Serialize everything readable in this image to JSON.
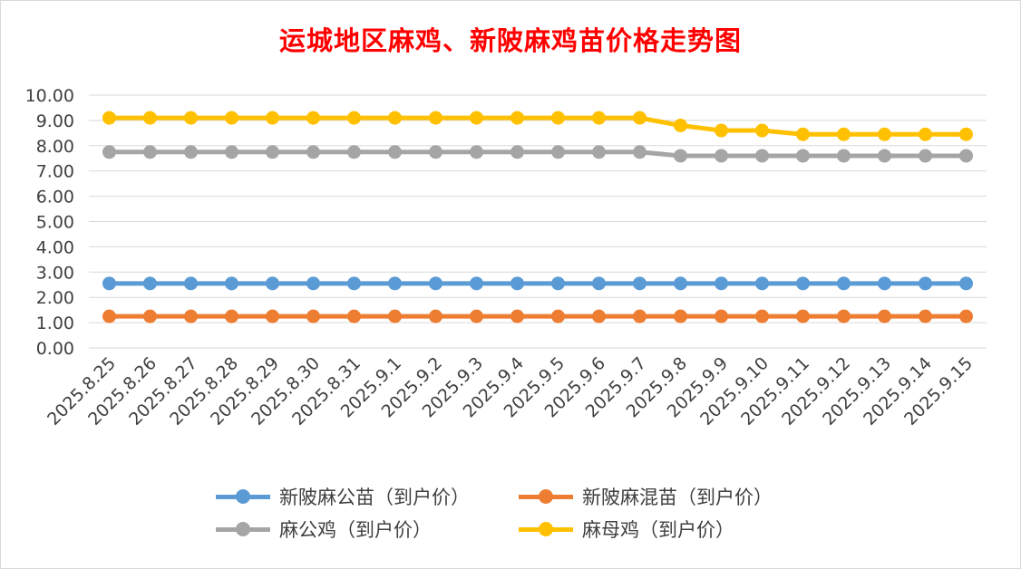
{
  "chart_data": {
    "type": "line",
    "title": "运城地区麻鸡、新陂麻鸡苗价格走势图",
    "categories": [
      "2025.8.25",
      "2025.8.26",
      "2025.8.27",
      "2025.8.28",
      "2025.8.29",
      "2025.8.30",
      "2025.8.31",
      "2025.9.1",
      "2025.9.2",
      "2025.9.3",
      "2025.9.4",
      "2025.9.5",
      "2025.9.6",
      "2025.9.7",
      "2025.9.8",
      "2025.9.9",
      "2025.9.10",
      "2025.9.11",
      "2025.9.12",
      "2025.9.13",
      "2025.9.14",
      "2025.9.15"
    ],
    "yticks": [
      "0.00",
      "1.00",
      "2.00",
      "3.00",
      "4.00",
      "5.00",
      "6.00",
      "7.00",
      "8.00",
      "9.00",
      "10.00"
    ],
    "ylim": [
      0,
      10
    ],
    "grid": true,
    "legend_position": "bottom",
    "series": [
      {
        "name": "新陂麻公苗（到户价）",
        "color": "#5b9bd5",
        "values": [
          2.55,
          2.55,
          2.55,
          2.55,
          2.55,
          2.55,
          2.55,
          2.55,
          2.55,
          2.55,
          2.55,
          2.55,
          2.55,
          2.55,
          2.55,
          2.55,
          2.55,
          2.55,
          2.55,
          2.55,
          2.55,
          2.55
        ]
      },
      {
        "name": "新陂麻混苗（到户价）",
        "color": "#ed7d31",
        "values": [
          1.25,
          1.25,
          1.25,
          1.25,
          1.25,
          1.25,
          1.25,
          1.25,
          1.25,
          1.25,
          1.25,
          1.25,
          1.25,
          1.25,
          1.25,
          1.25,
          1.25,
          1.25,
          1.25,
          1.25,
          1.25,
          1.25
        ]
      },
      {
        "name": "麻公鸡（到户价）",
        "color": "#a5a5a5",
        "values": [
          7.75,
          7.75,
          7.75,
          7.75,
          7.75,
          7.75,
          7.75,
          7.75,
          7.75,
          7.75,
          7.75,
          7.75,
          7.75,
          7.75,
          7.6,
          7.6,
          7.6,
          7.6,
          7.6,
          7.6,
          7.6,
          7.6
        ]
      },
      {
        "name": "麻母鸡（到户价）",
        "color": "#ffc000",
        "values": [
          9.1,
          9.1,
          9.1,
          9.1,
          9.1,
          9.1,
          9.1,
          9.1,
          9.1,
          9.1,
          9.1,
          9.1,
          9.1,
          9.1,
          8.8,
          8.6,
          8.6,
          8.45,
          8.45,
          8.45,
          8.45,
          8.45
        ]
      }
    ]
  }
}
